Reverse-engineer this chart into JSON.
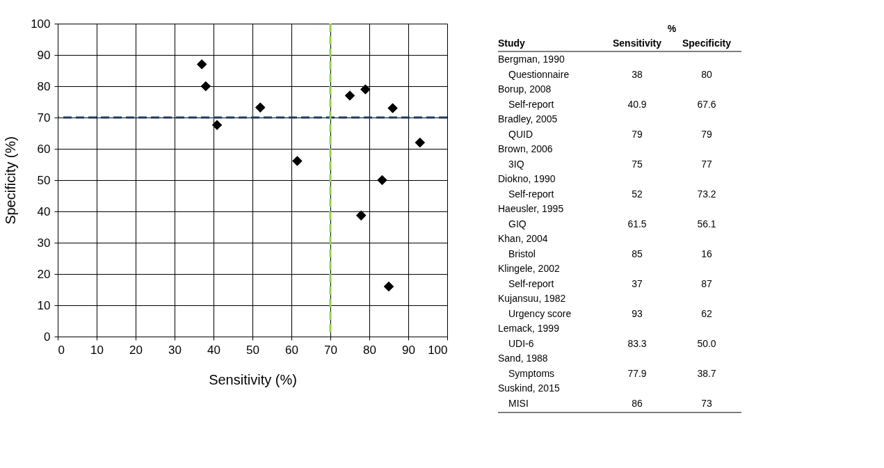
{
  "chart_data": {
    "type": "scatter",
    "xlabel": "Sensitivity (%)",
    "ylabel": "Specificity (%)",
    "xlim": [
      0,
      100
    ],
    "ylim": [
      0,
      100
    ],
    "xticks": [
      0,
      10,
      20,
      30,
      40,
      50,
      60,
      70,
      80,
      90,
      100
    ],
    "yticks": [
      0,
      10,
      20,
      30,
      40,
      50,
      60,
      70,
      80,
      90,
      100
    ],
    "grid": true,
    "legend": false,
    "marker": "diamond",
    "ref_lines": [
      {
        "axis": "y",
        "value": 70,
        "color": "#1f3864",
        "line_style": "dashed"
      },
      {
        "axis": "x",
        "value": 70,
        "color": "#92d050",
        "line_style": "dashed"
      }
    ],
    "series": [
      {
        "color": "#000000",
        "x": [
          38,
          40.9,
          79,
          75,
          52,
          61.5,
          85,
          37,
          93,
          83.3,
          77.9,
          86
        ],
        "values": [
          80,
          67.6,
          79,
          77,
          73.2,
          56.1,
          16,
          87,
          62,
          50.0,
          38.7,
          73
        ]
      }
    ],
    "annotations": [
      "%",
      "Study",
      "Sensitivity",
      "Specificity",
      "Bergman, 1990",
      "Questionnaire",
      "38",
      "80",
      "Borup, 2008",
      "Self-report",
      "40.9",
      "67.6",
      "Bradley, 2005",
      "QUID",
      "79",
      "79",
      "Brown, 2006",
      "3IQ",
      "75",
      "77",
      "Diokno, 1990",
      "Self-report",
      "52",
      "73.2",
      "Haeusler, 1995",
      "GIQ",
      "61.5",
      "56.1",
      "Khan, 2004",
      "Bristol",
      "85",
      "16",
      "Klingele, 2002",
      "Self-report",
      "37",
      "87",
      "Kujansuu, 1982",
      "Urgency score",
      "93",
      "62",
      "Lemack, 1999",
      "UDI-6",
      "83.3",
      "50.0",
      "Sand, 1988",
      "Symptoms",
      "77.9",
      "38.7",
      "Suskind, 2015",
      "MISI",
      "86",
      "73"
    ]
  }
}
